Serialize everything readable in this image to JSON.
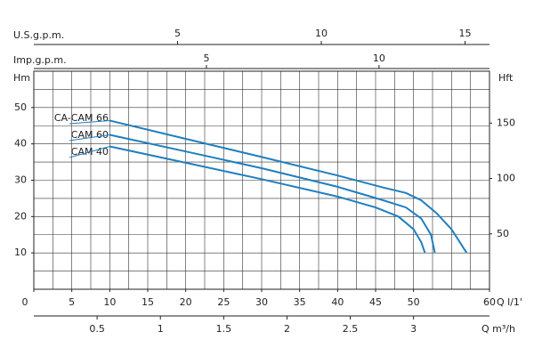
{
  "chart_data": {
    "type": "line",
    "ylabel": "Hm",
    "y2label": "Hft",
    "xlabel": "Q l/1'",
    "xlim": [
      0,
      60
    ],
    "xticks": [
      0,
      5,
      10,
      15,
      20,
      25,
      30,
      35,
      40,
      45,
      50,
      60
    ],
    "ylim": [
      0,
      60
    ],
    "yticks": [
      10,
      20,
      30,
      40,
      50
    ],
    "y2lim": [
      0,
      196.85
    ],
    "y2ticks": [
      50,
      100,
      150
    ],
    "grid": true,
    "extra_axes": [
      {
        "label": "U.S.g.p.m.",
        "xlim": [
          0,
          15.85
        ],
        "xticks": [
          5,
          10,
          15
        ]
      },
      {
        "label": "Imp.g.p.m.",
        "xlim": [
          0,
          13.2
        ],
        "xticks": [
          5,
          10
        ]
      },
      {
        "label": "Q m³/h",
        "xlim": [
          0,
          3.6
        ],
        "xticks": [
          0.5,
          1,
          1.5,
          2,
          2.5,
          3
        ]
      }
    ],
    "series": [
      {
        "name": "CA-CAM 66",
        "color": "#1f7fbf",
        "x": [
          10,
          20,
          30,
          40,
          46,
          49,
          51,
          53,
          55,
          57
        ],
        "values": [
          46.4,
          41.4,
          36.4,
          31.3,
          28,
          26.5,
          24.5,
          21,
          16.5,
          10
        ]
      },
      {
        "name": "CAM 60",
        "color": "#1f7fbf",
        "x": [
          10,
          20,
          30,
          40,
          46,
          49,
          51,
          52.3,
          52.8
        ],
        "values": [
          42.5,
          37.9,
          33.3,
          28.2,
          24.5,
          22.5,
          19.5,
          15,
          10
        ]
      },
      {
        "name": "CAM 40",
        "color": "#1f7fbf",
        "x": [
          10,
          20,
          30,
          40,
          45,
          48,
          50,
          51,
          51.5
        ],
        "values": [
          39.3,
          34.8,
          30.3,
          25.5,
          22.5,
          20,
          16.5,
          13,
          10
        ]
      }
    ]
  }
}
